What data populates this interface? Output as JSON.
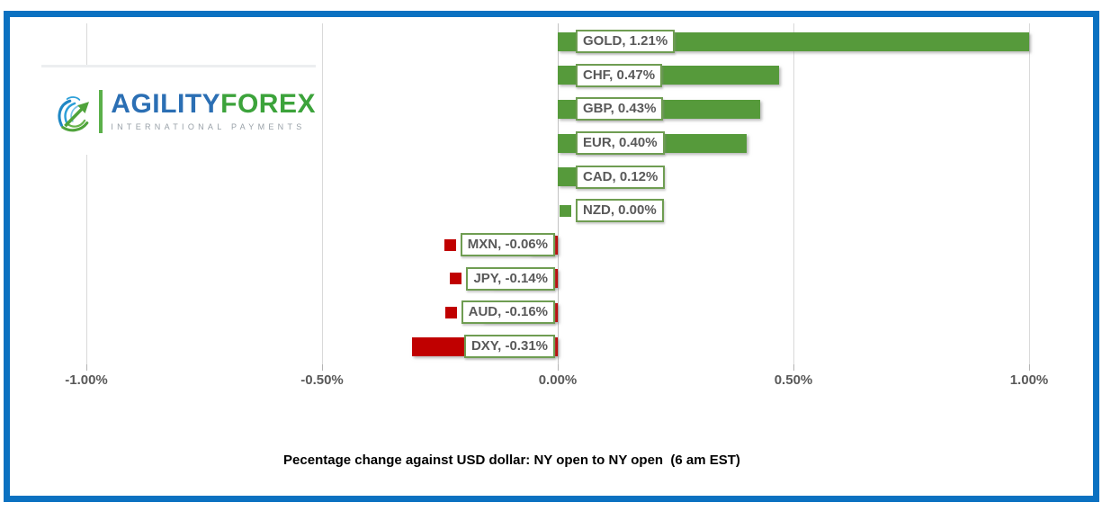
{
  "logo": {
    "brand_primary": "AGILITY",
    "brand_secondary": "FOREX",
    "tagline": "INTERNATIONAL PAYMENTS"
  },
  "chart_data": {
    "type": "bar",
    "orientation": "horizontal",
    "title": "Pecentage change against USD dollar: NY open to NY open  (6 am EST)",
    "categories": [
      "GOLD",
      "CHF",
      "GBP",
      "EUR",
      "CAD",
      "NZD",
      "MXN",
      "JPY",
      "AUD",
      "DXY"
    ],
    "values": [
      1.21,
      0.47,
      0.43,
      0.4,
      0.12,
      0.0,
      -0.06,
      -0.14,
      -0.16,
      -0.31
    ],
    "point_labels": [
      "GOLD, 1.21%",
      "CHF, 0.47%",
      "GBP, 0.43%",
      "EUR, 0.40%",
      "CAD, 0.12%",
      "NZD, 0.00%",
      "MXN, -0.06%",
      "JPY, -0.14%",
      "AUD, -0.16%",
      "DXY, -0.31%"
    ],
    "xlim": [
      -1.0,
      1.0
    ],
    "x_ticks": [
      -1.0,
      -0.5,
      0,
      0.5,
      1.0
    ],
    "x_tick_labels": [
      "-1.00%",
      "-0.50%",
      "0.00%",
      "0.50%",
      "1.00%"
    ],
    "grid": "vertical",
    "legend_position": "none",
    "positive_color": "#569A3B",
    "negative_color": "#C00000",
    "label_border_color": "#6F9D52",
    "label_text_color": "#595959",
    "frame_color": "#0B71C1",
    "note": "GOLD bar clipped at axis max 1.00%"
  }
}
